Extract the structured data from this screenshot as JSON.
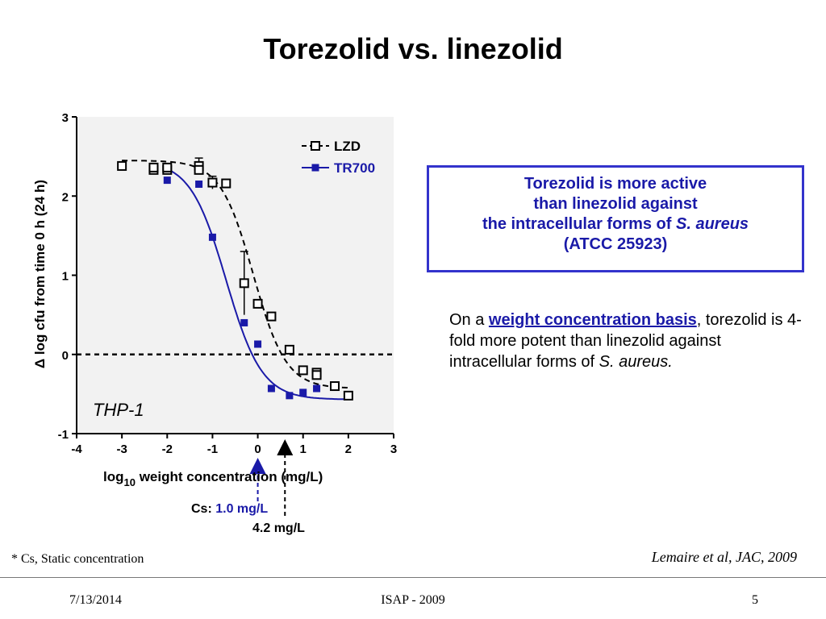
{
  "slide": {
    "title": "Torezolid vs. linezolid"
  },
  "callout": {
    "line1": "Torezolid is more active",
    "line2": "than linezolid against",
    "line3_prefix": "the intracellular forms of ",
    "line3_italic": "S. aureus",
    "line4": "(ATCC 25923)"
  },
  "note": {
    "prefix": "On a ",
    "link": "weight concentration basis",
    "suffix": ", torezolid is 4-fold more potent than linezolid against intracellular forms of ",
    "italic": "S. aureus."
  },
  "footnote": "* Cs, Static concentration",
  "citation": "Lemaire et al, JAC, 2009",
  "footer": {
    "date": "7/13/2014",
    "center": "ISAP - 2009",
    "page": "5"
  },
  "chart_data": {
    "type": "scatter",
    "xlabel_prefix": "log",
    "xlabel_sub": "10",
    "xlabel_suffix": " weight concentration (mg/L)",
    "ylabel": "Δ log cfu from time 0 h (24 h)",
    "xlim": [
      -4,
      3
    ],
    "ylim": [
      -1,
      3
    ],
    "xticks": [
      "-4",
      "-3",
      "-2",
      "-1",
      "0",
      "1",
      "2",
      "3"
    ],
    "yticks": [
      "-1",
      "0",
      "1",
      "2",
      "3"
    ],
    "cell_label": "THP-1",
    "baseline": 0,
    "colors": {
      "LZD": "#000000",
      "TR700": "#1a1aa8"
    },
    "series": [
      {
        "name": "LZD",
        "marker": "open-square",
        "line": "dashed",
        "points": [
          {
            "x": -3.0,
            "y": 2.38
          },
          {
            "x": -2.3,
            "y": 2.33
          },
          {
            "x": -2.3,
            "y": 2.36
          },
          {
            "x": -2.0,
            "y": 2.33
          },
          {
            "x": -2.0,
            "y": 2.36
          },
          {
            "x": -1.3,
            "y": 2.38,
            "err": 0.1
          },
          {
            "x": -1.3,
            "y": 2.33
          },
          {
            "x": -1.0,
            "y": 2.17,
            "err": 0.08
          },
          {
            "x": -0.7,
            "y": 2.16
          },
          {
            "x": -0.3,
            "y": 0.9,
            "err": 0.4
          },
          {
            "x": 0.0,
            "y": 0.64
          },
          {
            "x": 0.3,
            "y": 0.48
          },
          {
            "x": 0.7,
            "y": 0.06
          },
          {
            "x": 1.0,
            "y": -0.2
          },
          {
            "x": 1.3,
            "y": -0.23
          },
          {
            "x": 1.3,
            "y": -0.26
          },
          {
            "x": 1.7,
            "y": -0.4
          },
          {
            "x": 2.0,
            "y": -0.52
          }
        ],
        "fit": {
          "top": 2.45,
          "bottom": -0.43,
          "ec50": -0.1,
          "hill": 1.2
        }
      },
      {
        "name": "TR700",
        "marker": "filled-square",
        "line": "solid",
        "points": [
          {
            "x": -2.0,
            "y": 2.2
          },
          {
            "x": -1.3,
            "y": 2.15
          },
          {
            "x": -1.0,
            "y": 1.48
          },
          {
            "x": -0.3,
            "y": 0.4
          },
          {
            "x": 0.0,
            "y": 0.13
          },
          {
            "x": 0.3,
            "y": -0.43
          },
          {
            "x": 0.7,
            "y": -0.52
          },
          {
            "x": 1.0,
            "y": -0.48
          },
          {
            "x": 1.3,
            "y": -0.43
          }
        ],
        "fit": {
          "top": 2.45,
          "bottom": -0.57,
          "ec50": -0.7,
          "hill": 1.1
        }
      }
    ],
    "annotations": [
      {
        "label_prefix": "Cs: ",
        "label_value": "1.0 mg/L",
        "x": 0.0,
        "color": "#1a1aa8"
      },
      {
        "label": "4.2 mg/L",
        "x": 0.6,
        "color": "#000000"
      }
    ]
  }
}
